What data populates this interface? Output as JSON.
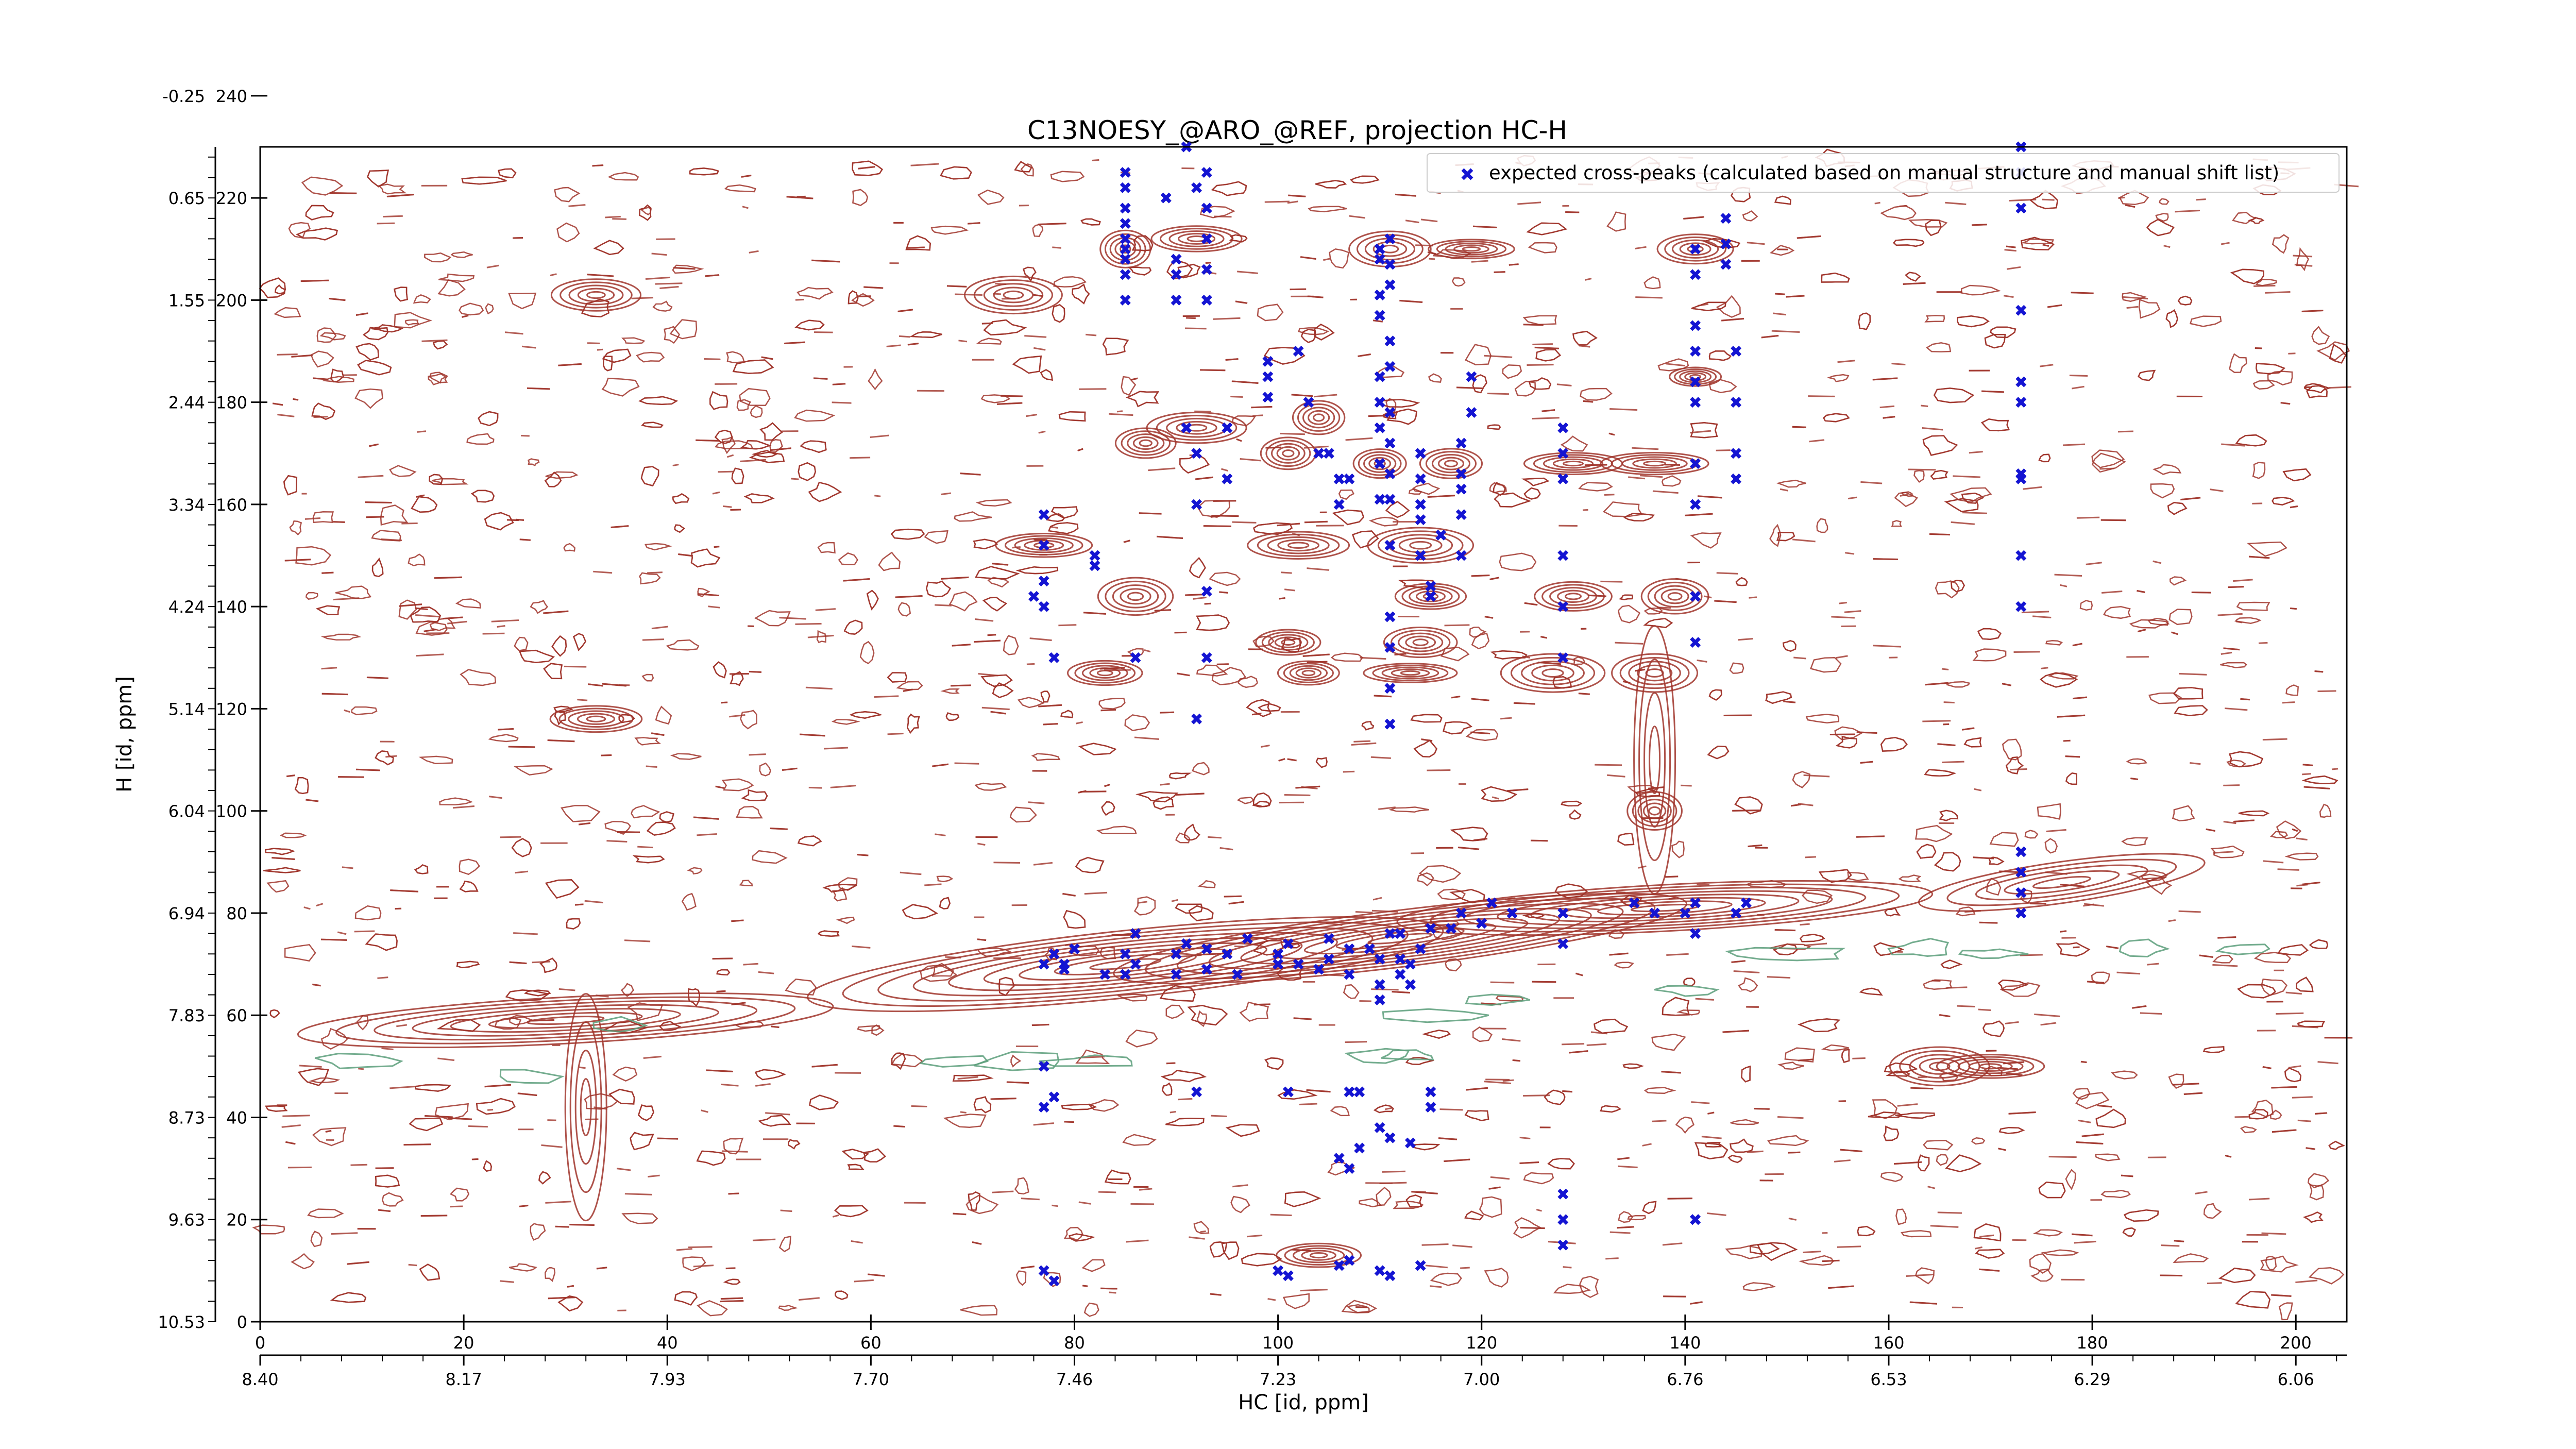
{
  "chart_data": {
    "type": "scatter",
    "title": "C13NOESY_@ARO_@REF, projection HC-H",
    "xlabel": "HC [id, ppm]",
    "ylabel": "H [id, ppm]",
    "xlim": [
      0,
      205
    ],
    "ylim": [
      0,
      230
    ],
    "x_ticks_index": [
      0,
      20,
      40,
      60,
      80,
      100,
      120,
      140,
      160,
      180,
      200
    ],
    "x_ticks_ppm": [
      "8.40",
      "8.17",
      "7.93",
      "7.70",
      "7.46",
      "7.23",
      "7.00",
      "6.76",
      "6.53",
      "6.29",
      "6.06"
    ],
    "y_ticks_index": [
      0,
      20,
      40,
      60,
      80,
      100,
      120,
      140,
      160,
      180,
      200,
      220,
      240
    ],
    "y_ticks_ppm": [
      "10.53",
      "9.63",
      "8.73",
      "7.83",
      "6.94",
      "6.04",
      "5.14",
      "4.24",
      "3.34",
      "2.44",
      "1.55",
      "0.65",
      "-0.25"
    ],
    "legend": {
      "location": "top-right",
      "entries": [
        "expected cross-peaks (calculated based on manual structure and manual shift list)"
      ]
    },
    "grid": false,
    "colors": {
      "contour_positive": "#a0342a",
      "contour_negative": "#5a9e7a",
      "peaks": "#1414d2"
    },
    "series": [
      {
        "name": "expected cross-peaks (calculated based on manual structure and manual shift list)",
        "marker": "x",
        "points": [
          [
            85,
            200
          ],
          [
            85,
            205
          ],
          [
            85,
            208
          ],
          [
            85,
            210
          ],
          [
            85,
            212
          ],
          [
            85,
            215
          ],
          [
            85,
            218
          ],
          [
            85,
            222
          ],
          [
            85,
            225
          ],
          [
            89,
            220
          ],
          [
            90,
            208
          ],
          [
            90,
            205
          ],
          [
            90,
            200
          ],
          [
            92,
            222
          ],
          [
            93,
            225
          ],
          [
            93,
            218
          ],
          [
            93,
            212
          ],
          [
            93,
            206
          ],
          [
            93,
            200
          ],
          [
            91,
            230
          ],
          [
            91,
            175
          ],
          [
            92,
            170
          ],
          [
            92,
            160
          ],
          [
            95,
            175
          ],
          [
            95,
            165
          ],
          [
            93,
            143
          ],
          [
            93,
            130
          ],
          [
            99,
            185
          ],
          [
            99,
            188
          ],
          [
            99,
            181
          ],
          [
            102,
            190
          ],
          [
            103,
            180
          ],
          [
            104,
            170
          ],
          [
            105,
            170
          ],
          [
            106,
            160
          ],
          [
            106,
            165
          ],
          [
            107,
            165
          ],
          [
            110,
            210
          ],
          [
            110,
            208
          ],
          [
            110,
            201
          ],
          [
            110,
            197
          ],
          [
            110,
            185
          ],
          [
            110,
            180
          ],
          [
            110,
            175
          ],
          [
            110,
            168
          ],
          [
            110,
            161
          ],
          [
            111,
            212
          ],
          [
            111,
            207
          ],
          [
            111,
            203
          ],
          [
            111,
            192
          ],
          [
            111,
            187
          ],
          [
            111,
            178
          ],
          [
            111,
            172
          ],
          [
            111,
            166
          ],
          [
            111,
            161
          ],
          [
            111,
            152
          ],
          [
            111,
            138
          ],
          [
            111,
            132
          ],
          [
            111,
            124
          ],
          [
            111,
            117
          ],
          [
            114,
            170
          ],
          [
            114,
            165
          ],
          [
            114,
            160
          ],
          [
            114,
            157
          ],
          [
            114,
            150
          ],
          [
            115,
            144
          ],
          [
            115,
            142
          ],
          [
            116,
            154
          ],
          [
            118,
            172
          ],
          [
            118,
            166
          ],
          [
            118,
            163
          ],
          [
            118,
            158
          ],
          [
            118,
            150
          ],
          [
            119,
            185
          ],
          [
            119,
            178
          ],
          [
            128,
            175
          ],
          [
            128,
            170
          ],
          [
            128,
            165
          ],
          [
            128,
            150
          ],
          [
            128,
            140
          ],
          [
            128,
            130
          ],
          [
            141,
            210
          ],
          [
            141,
            205
          ],
          [
            141,
            195
          ],
          [
            141,
            190
          ],
          [
            141,
            184
          ],
          [
            141,
            180
          ],
          [
            141,
            168
          ],
          [
            141,
            160
          ],
          [
            141,
            142
          ],
          [
            141,
            133
          ],
          [
            144,
            207
          ],
          [
            144,
            211
          ],
          [
            144,
            216
          ],
          [
            145,
            170
          ],
          [
            145,
            165
          ],
          [
            145,
            180
          ],
          [
            145,
            190
          ],
          [
            173,
            230
          ],
          [
            173,
            225
          ],
          [
            173,
            218
          ],
          [
            173,
            198
          ],
          [
            173,
            184
          ],
          [
            173,
            180
          ],
          [
            173,
            166
          ],
          [
            173,
            165
          ],
          [
            173,
            150
          ],
          [
            173,
            140
          ],
          [
            77,
            158
          ],
          [
            77,
            152
          ],
          [
            77,
            145
          ],
          [
            77,
            140
          ],
          [
            78,
            130
          ],
          [
            76,
            142
          ],
          [
            82,
            150
          ],
          [
            82,
            148
          ],
          [
            86,
            130
          ],
          [
            92,
            118
          ],
          [
            77,
            70
          ],
          [
            78,
            72
          ],
          [
            79,
            70
          ],
          [
            80,
            73
          ],
          [
            79,
            69
          ],
          [
            83,
            68
          ],
          [
            85,
            72
          ],
          [
            85,
            68
          ],
          [
            86,
            70
          ],
          [
            86,
            76
          ],
          [
            90,
            72
          ],
          [
            90,
            68
          ],
          [
            91,
            74
          ],
          [
            93,
            69
          ],
          [
            93,
            73
          ],
          [
            95,
            72
          ],
          [
            96,
            68
          ],
          [
            97,
            75
          ],
          [
            100,
            70
          ],
          [
            100,
            72
          ],
          [
            101,
            74
          ],
          [
            102,
            70
          ],
          [
            104,
            69
          ],
          [
            105,
            71
          ],
          [
            105,
            75
          ],
          [
            107,
            73
          ],
          [
            107,
            68
          ],
          [
            109,
            73
          ],
          [
            110,
            71
          ],
          [
            110,
            66
          ],
          [
            110,
            63
          ],
          [
            111,
            76
          ],
          [
            112,
            76
          ],
          [
            112,
            71
          ],
          [
            112,
            68
          ],
          [
            113,
            70
          ],
          [
            113,
            66
          ],
          [
            114,
            73
          ],
          [
            115,
            77
          ],
          [
            117,
            77
          ],
          [
            118,
            80
          ],
          [
            120,
            78
          ],
          [
            121,
            82
          ],
          [
            123,
            80
          ],
          [
            128,
            80
          ],
          [
            128,
            74
          ],
          [
            135,
            82
          ],
          [
            137,
            80
          ],
          [
            140,
            80
          ],
          [
            141,
            76
          ],
          [
            141,
            82
          ],
          [
            145,
            80
          ],
          [
            146,
            82
          ],
          [
            173,
            80
          ],
          [
            173,
            84
          ],
          [
            173,
            88
          ],
          [
            173,
            92
          ],
          [
            77,
            50
          ],
          [
            77,
            42
          ],
          [
            78,
            44
          ],
          [
            92,
            45
          ],
          [
            101,
            45
          ],
          [
            107,
            45
          ],
          [
            108,
            45
          ],
          [
            115,
            45
          ],
          [
            115,
            42
          ],
          [
            110,
            38
          ],
          [
            113,
            35
          ],
          [
            111,
            36
          ],
          [
            106,
            32
          ],
          [
            107,
            30
          ],
          [
            108,
            34
          ],
          [
            128,
            15
          ],
          [
            128,
            20
          ],
          [
            128,
            25
          ],
          [
            141,
            20
          ],
          [
            141,
            20
          ],
          [
            77,
            10
          ],
          [
            78,
            8
          ],
          [
            100,
            10
          ],
          [
            101,
            9
          ],
          [
            106,
            11
          ],
          [
            107,
            12
          ],
          [
            110,
            10
          ],
          [
            111,
            9
          ],
          [
            114,
            11
          ]
        ]
      }
    ]
  }
}
